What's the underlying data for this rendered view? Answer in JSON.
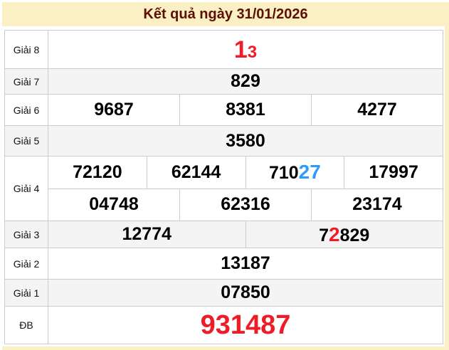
{
  "title": "Kết quả ngày 31/01/2026",
  "colors": {
    "page_bg": "#FBF0C3",
    "title_color": "#5C1005",
    "border": "#CCCCCC",
    "row_alt_bg": "#F4F4F4",
    "red": "#EF1C28",
    "blue": "#2E9AFE",
    "black": "#000000"
  },
  "prizes": {
    "rows": [
      {
        "label": "Giải 8",
        "alt": false,
        "lines": [
          [
            [
              {
                "t": "1",
                "s": "red-xl"
              },
              {
                "t": "3",
                "s": "red-md"
              }
            ]
          ]
        ]
      },
      {
        "label": "Giải 7",
        "alt": true,
        "lines": [
          [
            [
              {
                "t": "829"
              }
            ]
          ]
        ]
      },
      {
        "label": "Giải 6",
        "alt": false,
        "lines": [
          [
            [
              {
                "t": "9687"
              }
            ],
            [
              {
                "t": "8381"
              }
            ],
            [
              {
                "t": "4277"
              }
            ]
          ]
        ]
      },
      {
        "label": "Giải 5",
        "alt": true,
        "lines": [
          [
            [
              {
                "t": "3580"
              }
            ]
          ]
        ]
      },
      {
        "label": "Giải 4",
        "alt": false,
        "lines": [
          [
            [
              {
                "t": "72120"
              }
            ],
            [
              {
                "t": "62144"
              }
            ],
            [
              {
                "t": "710"
              },
              {
                "t": "27",
                "s": "blue"
              }
            ],
            [
              {
                "t": "17997"
              }
            ]
          ],
          [
            [
              {
                "t": "04748"
              }
            ],
            [
              {
                "t": "62316"
              }
            ],
            [
              {
                "t": "23174"
              }
            ]
          ]
        ]
      },
      {
        "label": "Giải 3",
        "alt": true,
        "lines": [
          [
            [
              {
                "t": "12774"
              }
            ],
            [
              {
                "t": "7"
              },
              {
                "t": "2",
                "s": "red-lg"
              },
              {
                "t": "829"
              }
            ]
          ]
        ]
      },
      {
        "label": "Giải 2",
        "alt": false,
        "lines": [
          [
            [
              {
                "t": "13187"
              }
            ]
          ]
        ]
      },
      {
        "label": "Giải 1",
        "alt": true,
        "lines": [
          [
            [
              {
                "t": "07850"
              }
            ]
          ]
        ]
      },
      {
        "label": "ĐB",
        "alt": false,
        "lines": [
          [
            [
              {
                "t": "931487",
                "s": "red-db"
              }
            ]
          ]
        ]
      }
    ]
  }
}
